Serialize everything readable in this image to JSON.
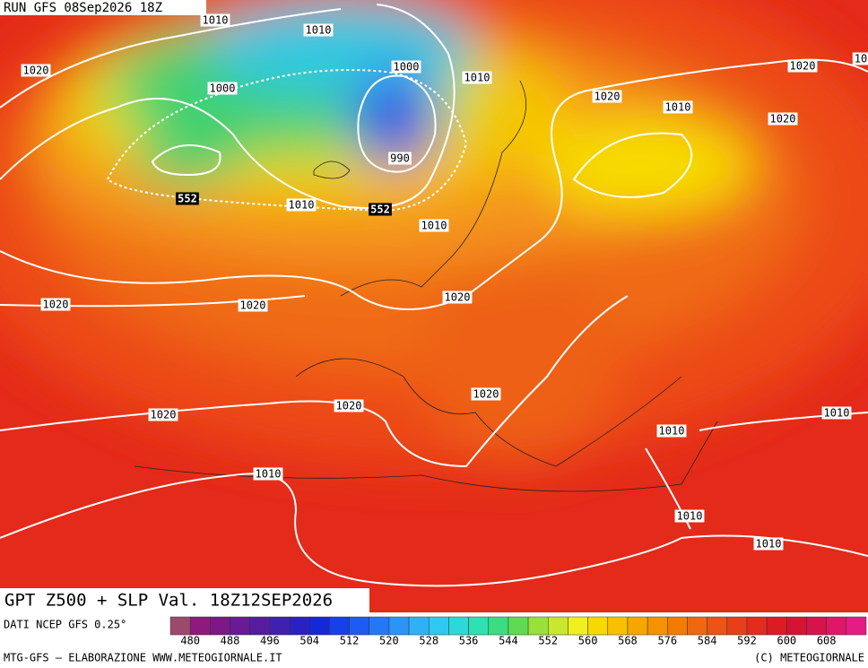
{
  "header": {
    "run": "RUN GFS 08Sep2026 18Z"
  },
  "map": {
    "isobar_labels": [
      1010,
      1010,
      1020,
      1000,
      1000,
      1010,
      1020,
      10,
      1020,
      1010,
      1020,
      990,
      1010,
      1010,
      1020,
      1020,
      1020,
      1020,
      1020,
      1020,
      1010,
      1010,
      1010,
      1010,
      1010
    ],
    "z500_labels": [
      552,
      552
    ]
  },
  "footer": {
    "title": "GPT Z500 + SLP Val. 18Z12SEP2026",
    "source": "DATI NCEP GFS 0.25°",
    "credit": "MTG-GFS — ELABORAZIONE WWW.METEOGIORNALE.IT",
    "copyright": "(C) METEOGIORNALE"
  },
  "legend": {
    "labels": [
      480,
      488,
      496,
      504,
      512,
      520,
      528,
      536,
      544,
      552,
      560,
      568,
      576,
      584,
      592,
      600,
      608
    ],
    "colors": [
      "#9c4a6c",
      "#8e1a7e",
      "#7c1888",
      "#6a1a94",
      "#561ca0",
      "#4020ae",
      "#2a22c0",
      "#1428d6",
      "#1640e8",
      "#1c5cf0",
      "#2478f4",
      "#2c94f6",
      "#32b0f6",
      "#30c8f0",
      "#2cd8d8",
      "#30e0b0",
      "#3cdc80",
      "#60da50",
      "#98e03c",
      "#c8e830",
      "#f0f020",
      "#f8d800",
      "#f8c000",
      "#f6a600",
      "#f49200",
      "#f27c00",
      "#ee6810",
      "#ea5416",
      "#e6401a",
      "#e22c1c",
      "#dc1c22",
      "#d41434",
      "#d6144c",
      "#de1866",
      "#e41c84"
    ]
  }
}
